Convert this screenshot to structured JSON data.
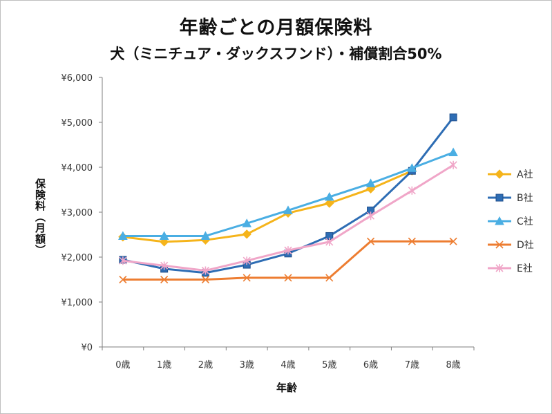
{
  "chart_data": {
    "type": "line",
    "title": "年齢ごとの月額保険料",
    "subtitle": "犬（ミニチュア・ダックスフンド）・補償割合50%",
    "xlabel": "年齢",
    "ylabel": "保険料（月額）",
    "categories": [
      "0歳",
      "1歳",
      "2歳",
      "3歳",
      "4歳",
      "5歳",
      "6歳",
      "7歳",
      "8歳"
    ],
    "y_ticks": [
      "¥0",
      "¥1,000",
      "¥2,000",
      "¥3,000",
      "¥4,000",
      "¥5,000",
      "¥6,000"
    ],
    "ylim": [
      0,
      6000
    ],
    "grid": false,
    "legend_position": "right",
    "series": [
      {
        "name": "A社",
        "color": "#f5b41b",
        "marker": "diamond",
        "values": [
          2450,
          2340,
          2380,
          2510,
          2980,
          3200,
          3520,
          3920,
          null
        ]
      },
      {
        "name": "B社",
        "color": "#2e6db4",
        "marker": "square",
        "values": [
          1940,
          1740,
          1650,
          1830,
          2080,
          2470,
          3040,
          3920,
          5110
        ]
      },
      {
        "name": "C社",
        "color": "#4aaee3",
        "marker": "triangle",
        "values": [
          2470,
          2470,
          2470,
          2750,
          3040,
          3340,
          3640,
          3980,
          4330
        ]
      },
      {
        "name": "D社",
        "color": "#ed7d31",
        "marker": "x",
        "values": [
          1500,
          1500,
          1500,
          1540,
          1540,
          1540,
          2350,
          2350,
          2350
        ]
      },
      {
        "name": "E社",
        "color": "#f0a6c8",
        "marker": "star",
        "values": [
          1920,
          1810,
          1700,
          1920,
          2150,
          2340,
          2920,
          3480,
          4050
        ]
      }
    ]
  }
}
